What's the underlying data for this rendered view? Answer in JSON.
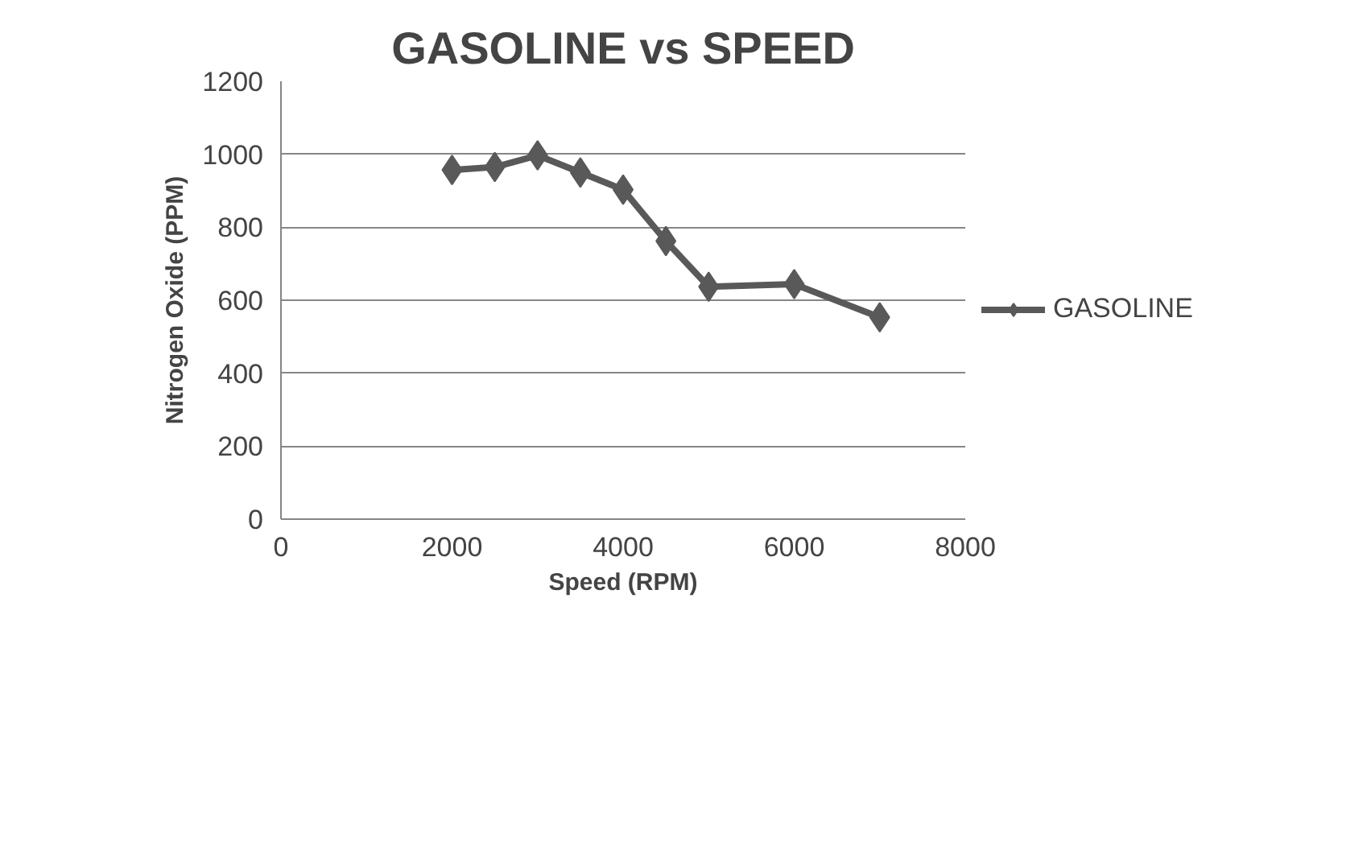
{
  "chart_data": {
    "type": "line",
    "title": "GASOLINE vs SPEED",
    "xlabel": "Speed (RPM)",
    "ylabel": "Nitrogen Oxide (PPM)",
    "x": [
      2000,
      2500,
      3000,
      3500,
      4000,
      4500,
      5000,
      6000,
      7000
    ],
    "series": [
      {
        "name": "GASOLINE",
        "color": "#595959",
        "values": [
          957,
          965,
          997,
          950,
          903,
          762,
          637,
          644,
          553
        ]
      }
    ],
    "xlim": [
      0,
      8000
    ],
    "xticks": [
      0,
      2000,
      4000,
      6000,
      8000
    ],
    "ylim": [
      0,
      1200
    ],
    "yticks": [
      0,
      200,
      400,
      600,
      800,
      1000,
      1200
    ],
    "grid": "y",
    "legend": "right",
    "marker": "diamond",
    "line_style": "solid"
  }
}
